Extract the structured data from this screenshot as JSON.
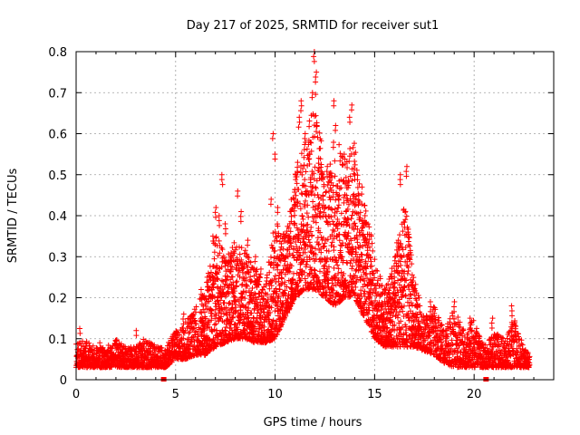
{
  "chart_data": {
    "type": "scatter",
    "title": "Day 217 of 2025, SRMTID for receiver sut1",
    "xlabel": "GPS time / hours",
    "ylabel": "SRMTID / TECUs",
    "xlim": [
      0,
      24
    ],
    "ylim": [
      0,
      0.8
    ],
    "xticks": [
      0,
      5,
      10,
      15,
      20
    ],
    "yticks": [
      0,
      0.1,
      0.2,
      0.3,
      0.4,
      0.5,
      0.6,
      0.7,
      0.8
    ],
    "xtick_labels": [
      "0",
      "5",
      "10",
      "15",
      "20"
    ],
    "ytick_labels": [
      "0",
      "0.1",
      "0.2",
      "0.3",
      "0.4",
      "0.5",
      "0.6",
      "0.7",
      "0.8"
    ],
    "grid": true,
    "legend": "none",
    "marker": "+",
    "color": "#ff0000",
    "x_gap_markers": [
      4.4,
      20.6
    ],
    "envelope": {
      "x": [
        0,
        0.5,
        1,
        1.5,
        2,
        2.5,
        3,
        3.5,
        4,
        4.5,
        5,
        5.5,
        6,
        6.5,
        7,
        7.5,
        8,
        8.5,
        9,
        9.5,
        10,
        10.5,
        11,
        11.5,
        12,
        12.5,
        13,
        13.5,
        14,
        14.5,
        15,
        15.5,
        16,
        16.5,
        17,
        17.5,
        18,
        18.5,
        19,
        19.5,
        20,
        20.5,
        21,
        21.5,
        22,
        22.5,
        22.8
      ],
      "low": [
        0.03,
        0.03,
        0.03,
        0.03,
        0.03,
        0.03,
        0.03,
        0.03,
        0.03,
        0.03,
        0.05,
        0.05,
        0.06,
        0.06,
        0.08,
        0.09,
        0.1,
        0.1,
        0.09,
        0.09,
        0.1,
        0.15,
        0.2,
        0.22,
        0.22,
        0.2,
        0.18,
        0.2,
        0.2,
        0.15,
        0.1,
        0.08,
        0.08,
        0.08,
        0.08,
        0.07,
        0.06,
        0.04,
        0.03,
        0.03,
        0.03,
        0.03,
        0.03,
        0.03,
        0.03,
        0.03,
        0.03
      ],
      "high": [
        0.09,
        0.1,
        0.08,
        0.08,
        0.1,
        0.08,
        0.08,
        0.11,
        0.08,
        0.08,
        0.12,
        0.14,
        0.18,
        0.22,
        0.38,
        0.3,
        0.35,
        0.32,
        0.28,
        0.22,
        0.4,
        0.35,
        0.5,
        0.58,
        0.72,
        0.5,
        0.6,
        0.55,
        0.58,
        0.45,
        0.3,
        0.22,
        0.3,
        0.45,
        0.25,
        0.15,
        0.18,
        0.12,
        0.18,
        0.12,
        0.15,
        0.08,
        0.12,
        0.1,
        0.15,
        0.08,
        0.06
      ]
    },
    "spikes": [
      {
        "x": 0.2,
        "y": 0.125
      },
      {
        "x": 1.2,
        "y": 0.09
      },
      {
        "x": 3.0,
        "y": 0.12
      },
      {
        "x": 4.1,
        "y": 0.08
      },
      {
        "x": 5.4,
        "y": 0.16
      },
      {
        "x": 6.3,
        "y": 0.22
      },
      {
        "x": 6.6,
        "y": 0.25
      },
      {
        "x": 6.9,
        "y": 0.35
      },
      {
        "x": 7.0,
        "y": 0.42
      },
      {
        "x": 7.2,
        "y": 0.4
      },
      {
        "x": 7.35,
        "y": 0.5
      },
      {
        "x": 7.5,
        "y": 0.38
      },
      {
        "x": 7.8,
        "y": 0.3
      },
      {
        "x": 8.1,
        "y": 0.46
      },
      {
        "x": 8.3,
        "y": 0.41
      },
      {
        "x": 8.6,
        "y": 0.34
      },
      {
        "x": 9.0,
        "y": 0.3
      },
      {
        "x": 9.3,
        "y": 0.27
      },
      {
        "x": 9.8,
        "y": 0.44
      },
      {
        "x": 9.9,
        "y": 0.6
      },
      {
        "x": 10.0,
        "y": 0.55
      },
      {
        "x": 10.1,
        "y": 0.42
      },
      {
        "x": 10.7,
        "y": 0.35
      },
      {
        "x": 10.8,
        "y": 0.41
      },
      {
        "x": 11.0,
        "y": 0.5
      },
      {
        "x": 11.1,
        "y": 0.53
      },
      {
        "x": 11.2,
        "y": 0.64
      },
      {
        "x": 11.3,
        "y": 0.68
      },
      {
        "x": 11.5,
        "y": 0.6
      },
      {
        "x": 11.7,
        "y": 0.55
      },
      {
        "x": 11.85,
        "y": 0.7
      },
      {
        "x": 11.95,
        "y": 0.8
      },
      {
        "x": 12.05,
        "y": 0.75
      },
      {
        "x": 12.2,
        "y": 0.54
      },
      {
        "x": 12.4,
        "y": 0.45
      },
      {
        "x": 12.6,
        "y": 0.52
      },
      {
        "x": 12.8,
        "y": 0.48
      },
      {
        "x": 12.95,
        "y": 0.68
      },
      {
        "x": 13.05,
        "y": 0.62
      },
      {
        "x": 13.2,
        "y": 0.45
      },
      {
        "x": 13.5,
        "y": 0.55
      },
      {
        "x": 13.6,
        "y": 0.48
      },
      {
        "x": 13.75,
        "y": 0.64
      },
      {
        "x": 13.85,
        "y": 0.67
      },
      {
        "x": 14.0,
        "y": 0.5
      },
      {
        "x": 14.2,
        "y": 0.45
      },
      {
        "x": 14.5,
        "y": 0.4
      },
      {
        "x": 14.8,
        "y": 0.3
      },
      {
        "x": 15.3,
        "y": 0.17
      },
      {
        "x": 15.7,
        "y": 0.19
      },
      {
        "x": 16.0,
        "y": 0.25
      },
      {
        "x": 16.3,
        "y": 0.5
      },
      {
        "x": 16.6,
        "y": 0.52
      },
      {
        "x": 16.7,
        "y": 0.36
      },
      {
        "x": 17.2,
        "y": 0.13
      },
      {
        "x": 17.8,
        "y": 0.19
      },
      {
        "x": 18.1,
        "y": 0.12
      },
      {
        "x": 19.0,
        "y": 0.19
      },
      {
        "x": 19.3,
        "y": 0.14
      },
      {
        "x": 19.8,
        "y": 0.15
      },
      {
        "x": 20.9,
        "y": 0.15
      },
      {
        "x": 21.2,
        "y": 0.11
      },
      {
        "x": 21.9,
        "y": 0.18
      },
      {
        "x": 22.1,
        "y": 0.13
      }
    ]
  }
}
